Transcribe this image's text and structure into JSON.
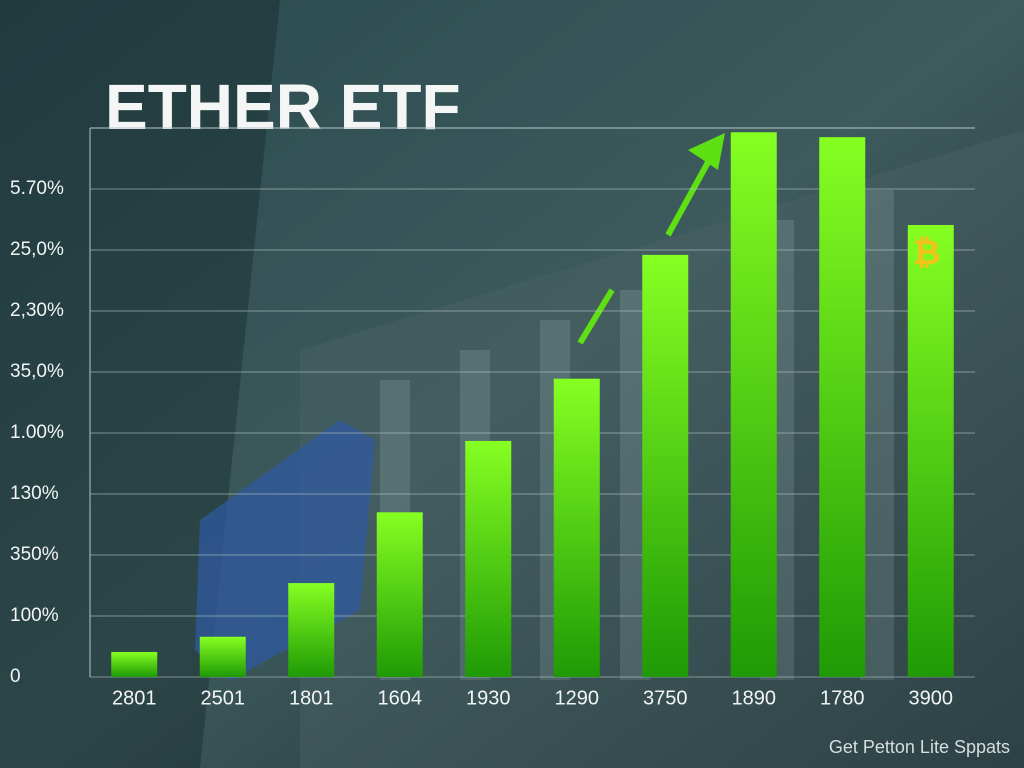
{
  "chart_data": {
    "type": "bar",
    "title": "ETHER ETF",
    "categories": [
      "2801",
      "2501",
      "1801",
      "1604",
      "1930",
      "1290",
      "3750",
      "1890",
      "1780",
      "3900"
    ],
    "values": [
      0.41,
      0.66,
      1.54,
      2.7,
      3.87,
      4.89,
      6.92,
      8.93,
      8.85,
      7.41
    ],
    "color": "#5fe014",
    "ylim": [
      0,
      9
    ],
    "yticks": [
      0,
      {
        "value": 1,
        "label": "100%"
      },
      {
        "value": 2,
        "label": "350%"
      },
      {
        "value": 3,
        "label": "130%"
      },
      {
        "value": 4,
        "label": "1.00%"
      },
      {
        "value": 5,
        "label": "35,0%"
      },
      {
        "value": 6,
        "label": "2,30%"
      },
      {
        "value": 7,
        "label": "25,0%"
      },
      {
        "value": 8,
        "label": "5.70%"
      }
    ],
    "grid": true,
    "caption": "Get Petton Lite Sppats"
  }
}
